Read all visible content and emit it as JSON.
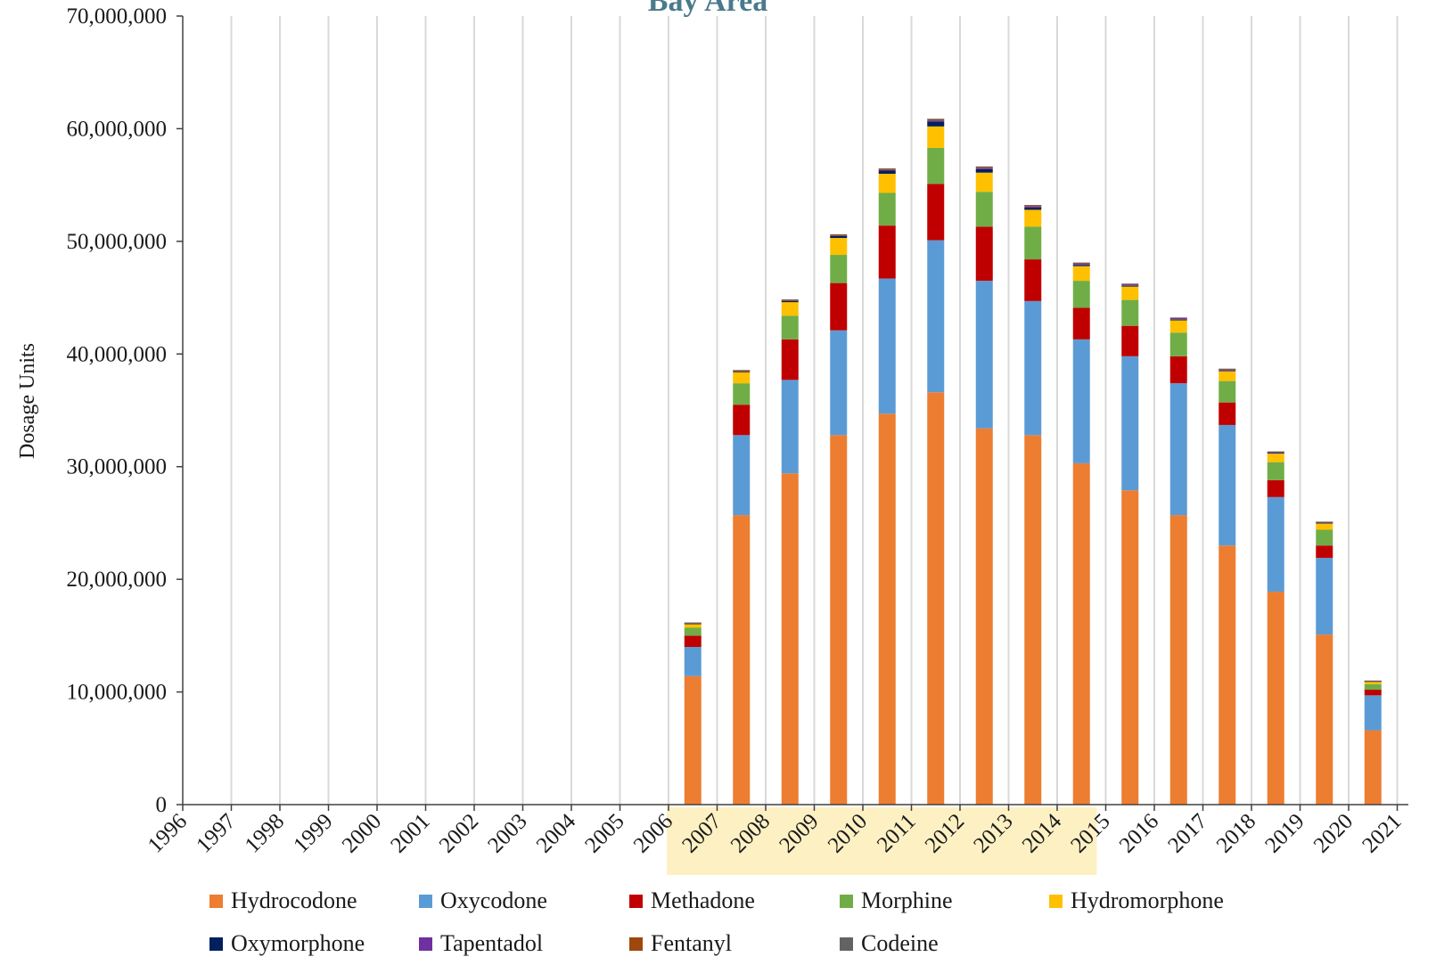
{
  "chart_data": {
    "type": "bar",
    "stacked": true,
    "title": "Bay Area",
    "xlabel": "",
    "ylabel": "Dosage Units",
    "ylim": [
      0,
      70000000
    ],
    "y_ticks": [
      "0",
      "10,000,000",
      "20,000,000",
      "30,000,000",
      "40,000,000",
      "50,000,000",
      "60,000,000",
      "70,000,000"
    ],
    "y_tick_values": [
      0,
      10000000,
      20000000,
      30000000,
      40000000,
      50000000,
      60000000,
      70000000
    ],
    "grid": "vertical",
    "highlight_range": [
      "2006",
      "2014"
    ],
    "highlight_color": "#fdf1c4",
    "legend_position": "bottom",
    "categories": [
      "1996",
      "1997",
      "1998",
      "1999",
      "2000",
      "2001",
      "2002",
      "2003",
      "2004",
      "2005",
      "2006",
      "2007",
      "2008",
      "2009",
      "2010",
      "2011",
      "2012",
      "2013",
      "2014",
      "2015",
      "2016",
      "2017",
      "2018",
      "2019",
      "2020",
      "2021"
    ],
    "series": [
      {
        "name": "Hydrocodone",
        "color": "#ed7d31",
        "values": [
          0,
          0,
          0,
          0,
          0,
          0,
          0,
          0,
          0,
          0,
          11400000,
          25700000,
          29400000,
          32800000,
          34700000,
          36600000,
          33400000,
          32800000,
          30300000,
          27900000,
          25700000,
          23000000,
          18900000,
          15100000,
          6600000,
          0
        ]
      },
      {
        "name": "Oxycodone",
        "color": "#5b9bd5",
        "values": [
          0,
          0,
          0,
          0,
          0,
          0,
          0,
          0,
          0,
          0,
          2600000,
          7100000,
          8300000,
          9300000,
          12000000,
          13500000,
          13100000,
          11900000,
          11000000,
          11900000,
          11700000,
          10700000,
          8400000,
          6800000,
          3100000,
          0
        ]
      },
      {
        "name": "Methadone",
        "color": "#c00000",
        "values": [
          0,
          0,
          0,
          0,
          0,
          0,
          0,
          0,
          0,
          0,
          1000000,
          2700000,
          3600000,
          4200000,
          4700000,
          5000000,
          4800000,
          3700000,
          2800000,
          2700000,
          2400000,
          2000000,
          1500000,
          1100000,
          500000,
          0
        ]
      },
      {
        "name": "Morphine",
        "color": "#70ad47",
        "values": [
          0,
          0,
          0,
          0,
          0,
          0,
          0,
          0,
          0,
          0,
          700000,
          1900000,
          2100000,
          2500000,
          2900000,
          3200000,
          3100000,
          2900000,
          2400000,
          2300000,
          2100000,
          1900000,
          1600000,
          1400000,
          500000,
          0
        ]
      },
      {
        "name": "Hydromorphone",
        "color": "#ffc000",
        "values": [
          0,
          0,
          0,
          0,
          0,
          0,
          0,
          0,
          0,
          0,
          350000,
          1000000,
          1200000,
          1500000,
          1700000,
          1900000,
          1700000,
          1500000,
          1300000,
          1200000,
          1100000,
          900000,
          800000,
          600000,
          250000,
          0
        ]
      },
      {
        "name": "Oxymorphone",
        "color": "#002060",
        "values": [
          0,
          0,
          0,
          0,
          0,
          0,
          0,
          0,
          0,
          0,
          30000,
          50000,
          100000,
          180000,
          300000,
          450000,
          300000,
          200000,
          100000,
          50000,
          50000,
          40000,
          20000,
          20000,
          10000,
          0
        ]
      },
      {
        "name": "Tapentadol",
        "color": "#7030a0",
        "values": [
          0,
          0,
          0,
          0,
          0,
          0,
          0,
          0,
          0,
          0,
          0,
          0,
          0,
          0,
          30000,
          80000,
          100000,
          100000,
          100000,
          100000,
          100000,
          80000,
          70000,
          50000,
          20000,
          0
        ]
      },
      {
        "name": "Fentanyl",
        "color": "#9e480e",
        "values": [
          0,
          0,
          0,
          0,
          0,
          0,
          0,
          0,
          0,
          0,
          60000,
          90000,
          100000,
          100000,
          100000,
          100000,
          100000,
          90000,
          80000,
          70000,
          60000,
          50000,
          40000,
          30000,
          20000,
          0
        ]
      },
      {
        "name": "Codeine",
        "color": "#636363",
        "values": [
          0,
          0,
          0,
          0,
          0,
          0,
          0,
          0,
          0,
          0,
          30000,
          40000,
          50000,
          50000,
          50000,
          50000,
          50000,
          40000,
          40000,
          30000,
          30000,
          30000,
          20000,
          20000,
          10000,
          0
        ]
      }
    ]
  }
}
